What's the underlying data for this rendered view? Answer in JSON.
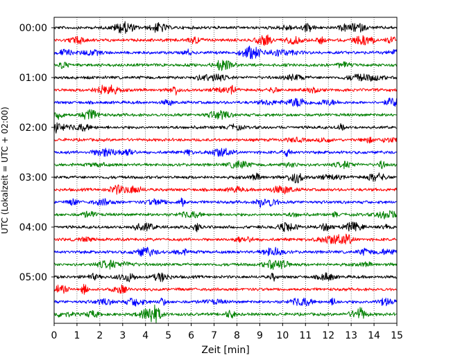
{
  "chart_data": {
    "type": "line",
    "title": "",
    "xlabel": "Zeit  [min]",
    "ylabel": "UTC (Lokalzeit = UTC + 02:00)",
    "xlim": [
      0,
      15
    ],
    "xticks": [
      "0",
      "1",
      "2",
      "3",
      "4",
      "5",
      "6",
      "7",
      "8",
      "9",
      "10",
      "11",
      "12",
      "13",
      "14",
      "15"
    ],
    "yticks": [
      {
        "label": "00:00",
        "row": 0
      },
      {
        "label": "01:00",
        "row": 4
      },
      {
        "label": "02:00",
        "row": 8
      },
      {
        "label": "03:00",
        "row": 12
      },
      {
        "label": "04:00",
        "row": 16
      },
      {
        "label": "05:00",
        "row": 20
      }
    ],
    "grid": "vertical-dotted",
    "trace_minutes_per_row": 15,
    "trace_count": 24,
    "colors": [
      "#000000",
      "#ff0000",
      "#0000ff",
      "#008000"
    ]
  }
}
